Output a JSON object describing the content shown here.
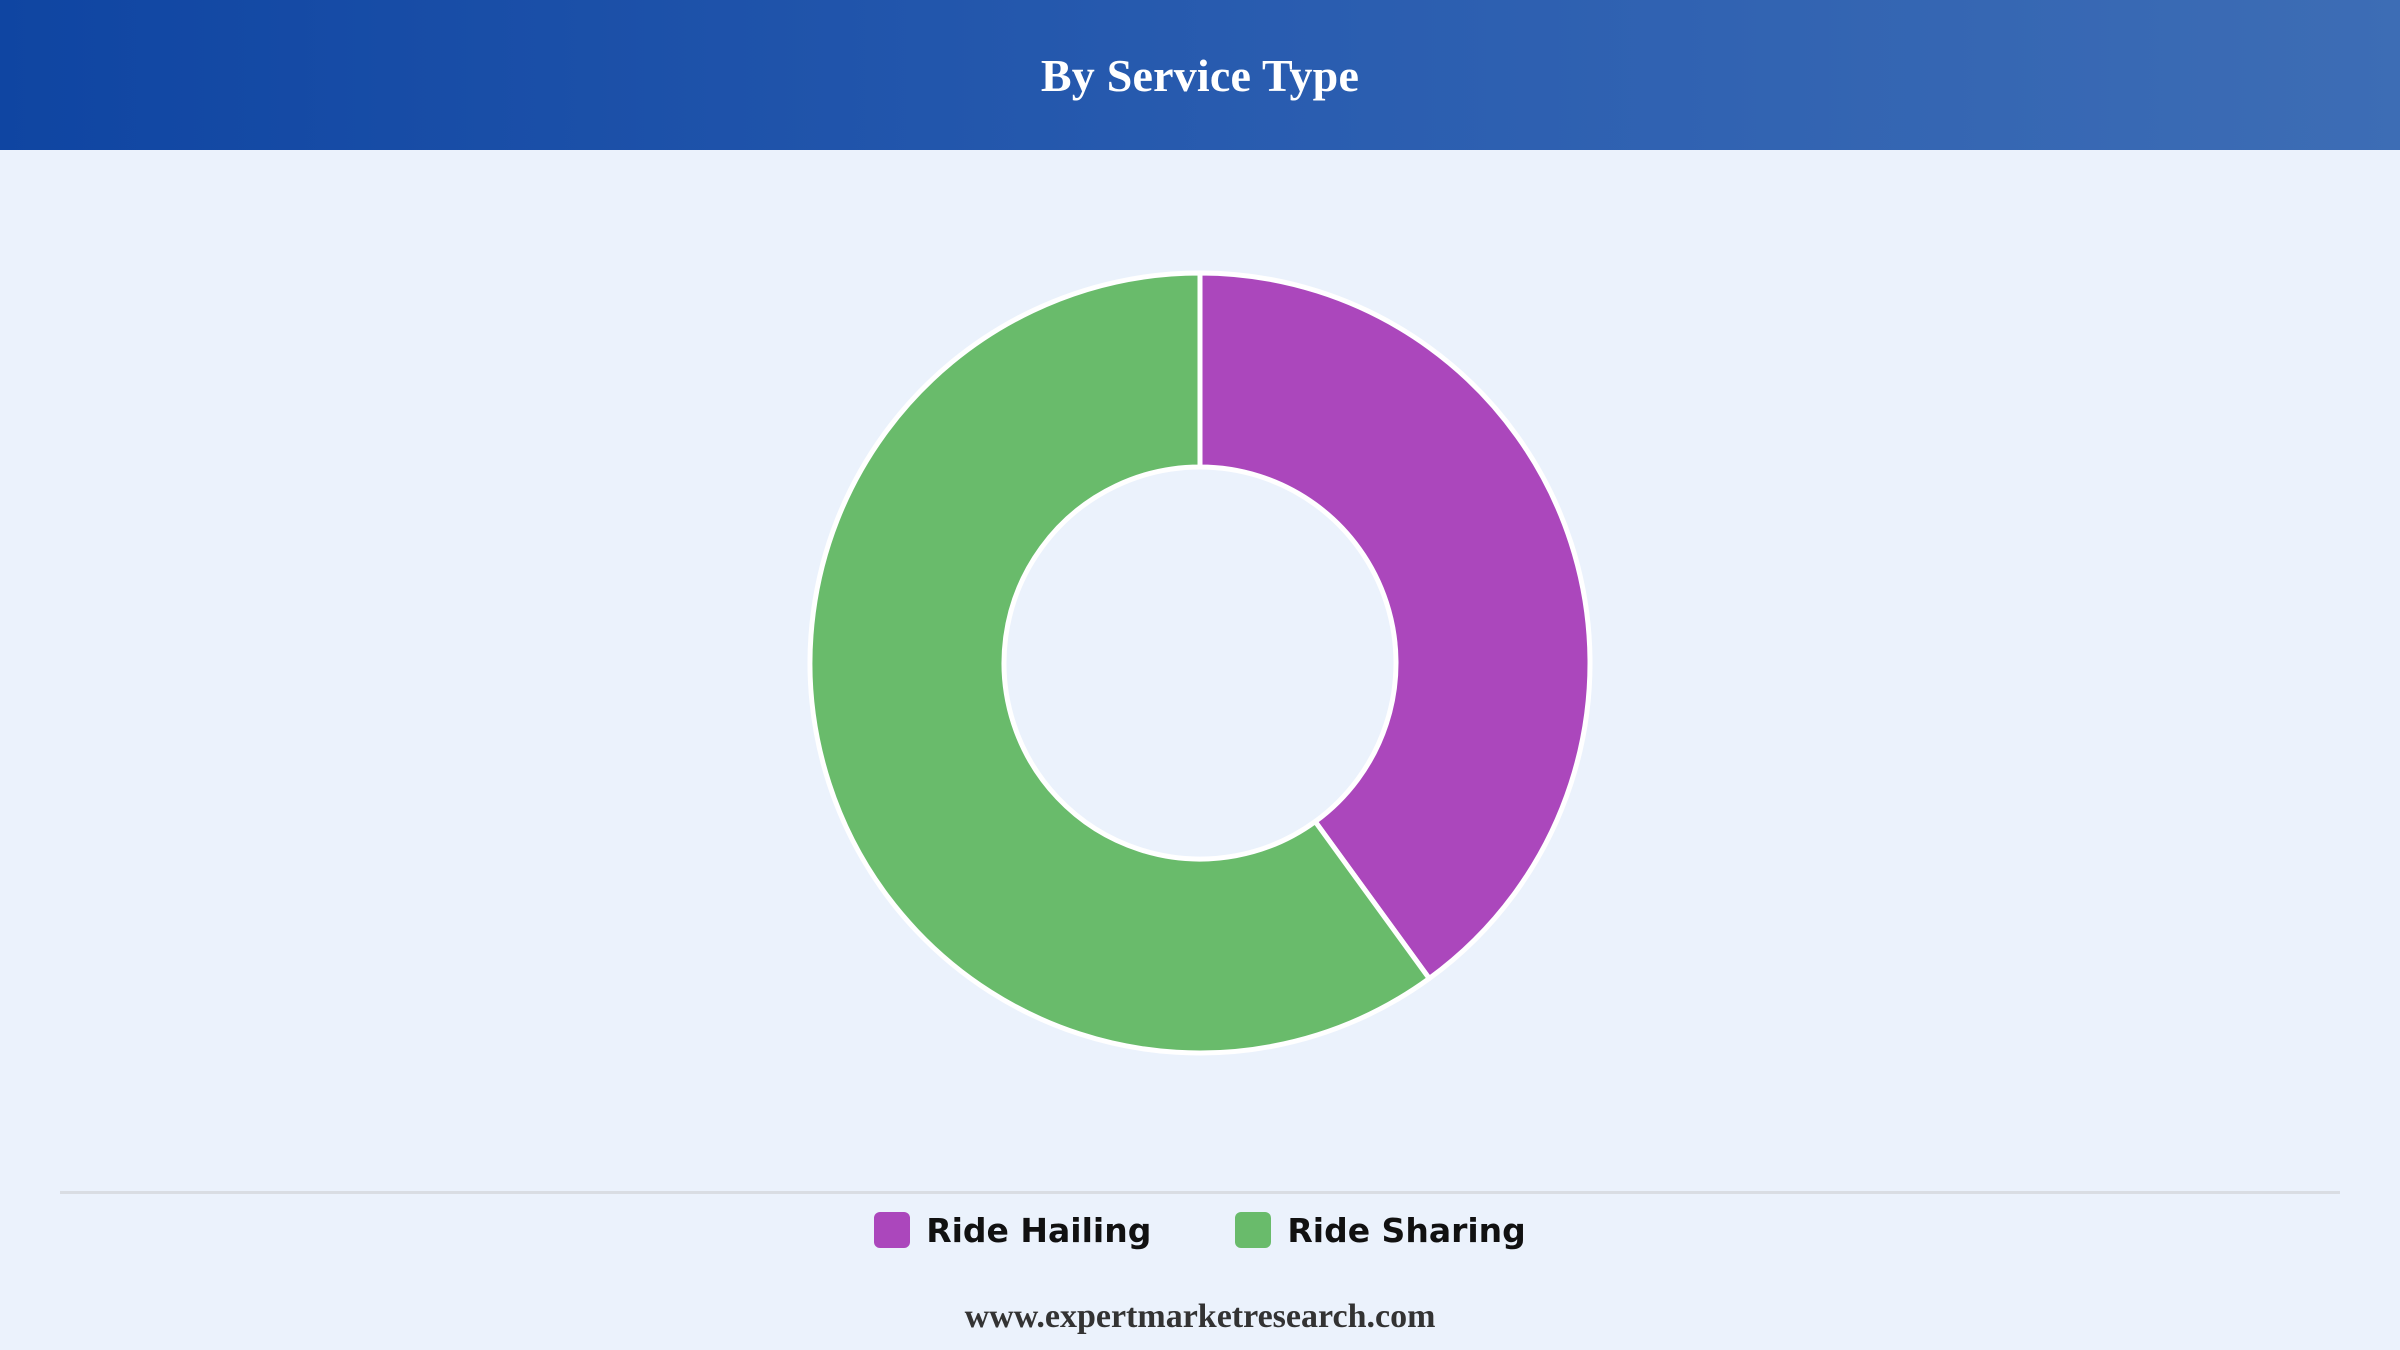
{
  "header": {
    "title": "By Service Type"
  },
  "chart_data": {
    "type": "pie",
    "donut": true,
    "title": "By Service Type",
    "categories": [
      "Ride Hailing",
      "Ride Sharing"
    ],
    "values": [
      40,
      60
    ],
    "colors": [
      "#ab47bc",
      "#69bb6b"
    ],
    "legend_placement": "bottom-center"
  },
  "legend": {
    "items": [
      {
        "label": "Ride Hailing",
        "color": "#ab47bc"
      },
      {
        "label": "Ride Sharing",
        "color": "#69bb6b"
      }
    ]
  },
  "footer": {
    "text": "www.expertmarketresearch.com"
  }
}
